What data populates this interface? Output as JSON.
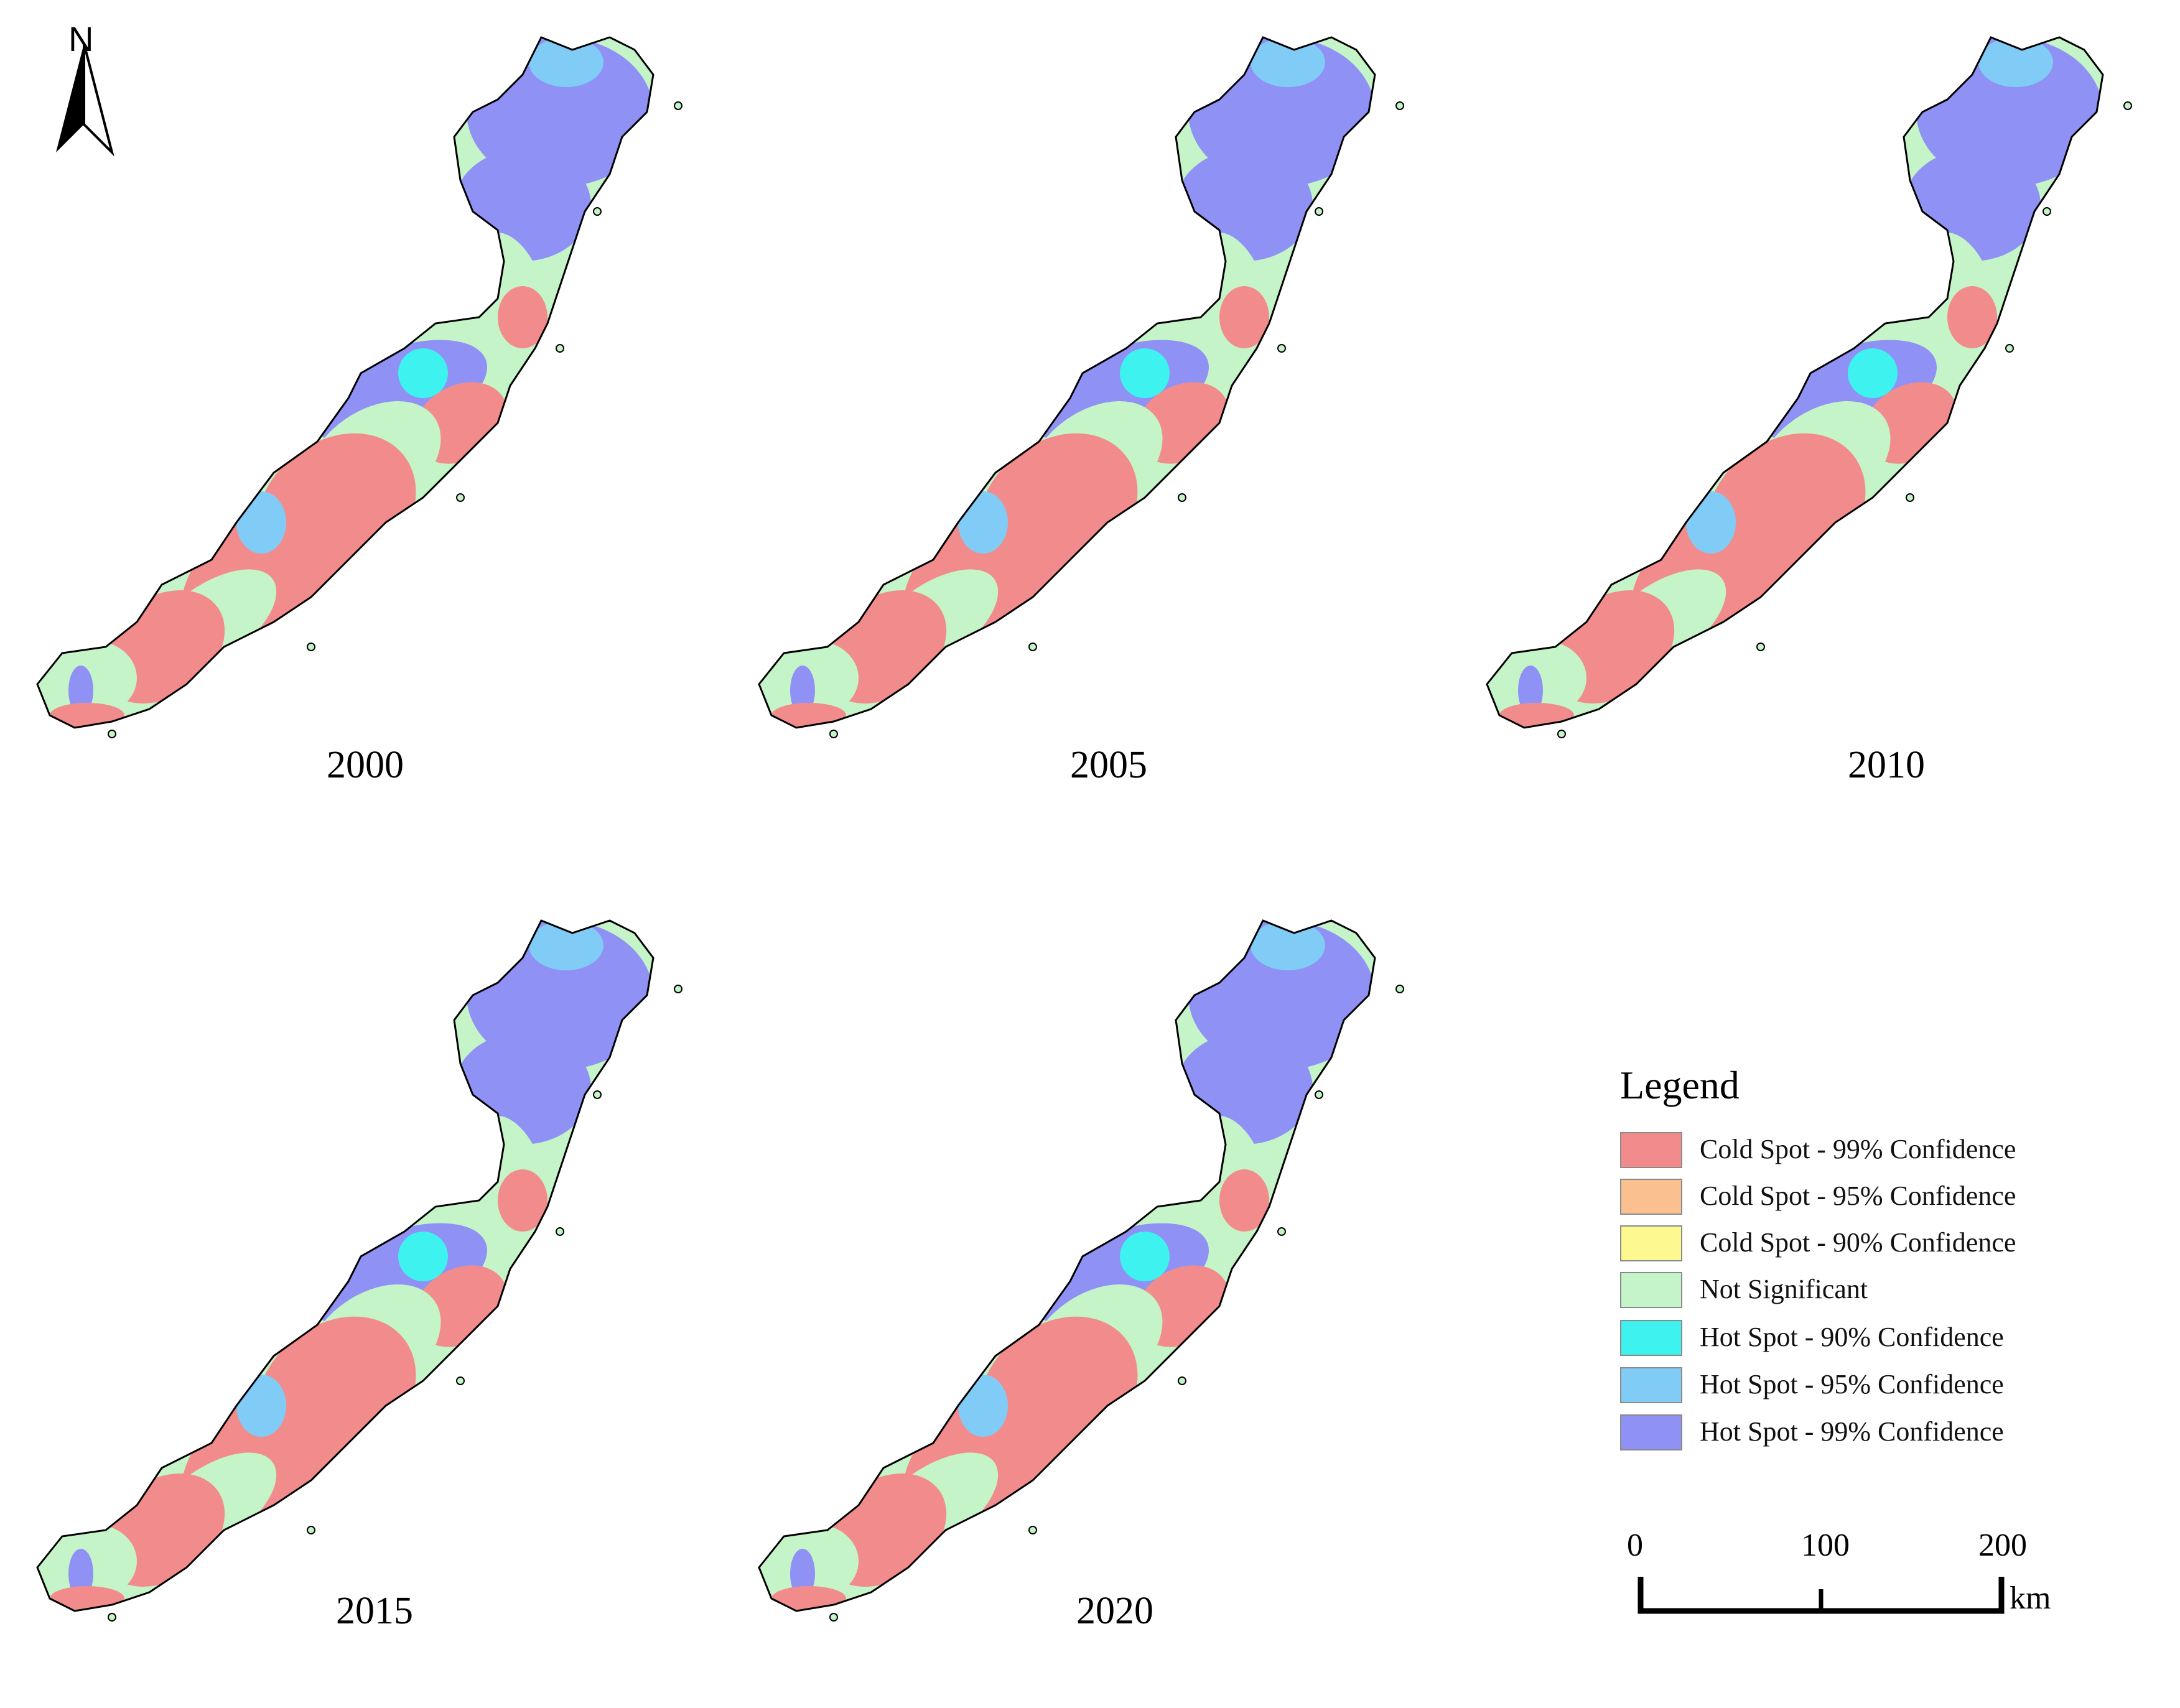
{
  "north_arrow": {
    "letter": "N",
    "icon": "north-arrow-icon"
  },
  "panels": [
    {
      "year": "2000"
    },
    {
      "year": "2005"
    },
    {
      "year": "2010"
    },
    {
      "year": "2015"
    },
    {
      "year": "2020"
    }
  ],
  "legend": {
    "title": "Legend",
    "items": [
      {
        "label": "Cold Spot - 99% Confidence",
        "color": "#f28c8c"
      },
      {
        "label": "Cold Spot - 95% Confidence",
        "color": "#fbc08f"
      },
      {
        "label": "Cold Spot - 90% Confidence",
        "color": "#fdf88f"
      },
      {
        "label": "Not Significant",
        "color": "#c4f4c8"
      },
      {
        "label": "Hot Spot - 90% Confidence",
        "color": "#3ef2ef"
      },
      {
        "label": "Hot Spot - 95% Confidence",
        "color": "#80ccf7"
      },
      {
        "label": "Hot Spot - 99% Confidence",
        "color": "#8f91f5"
      }
    ]
  },
  "scale_bar": {
    "ticks": [
      "0",
      "100",
      "200"
    ],
    "unit": "km"
  }
}
